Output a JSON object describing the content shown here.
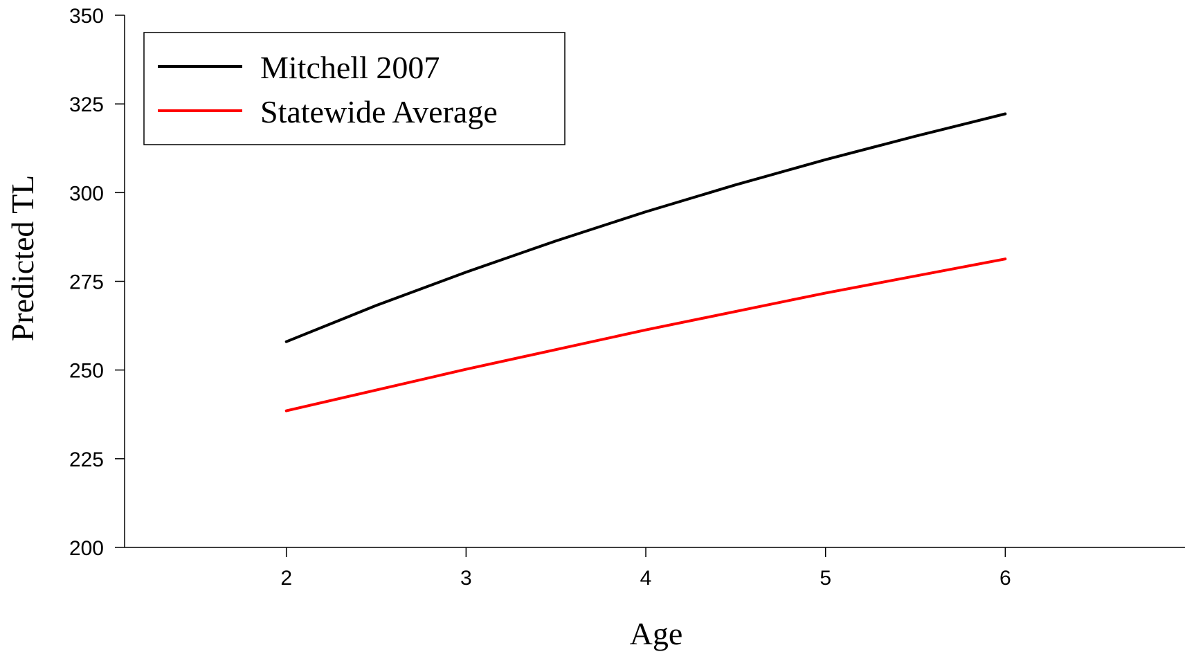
{
  "chart_data": {
    "type": "line",
    "xlabel": "Age",
    "ylabel": "Predicted TL",
    "xlim": [
      1.1,
      7
    ],
    "ylim": [
      200,
      350
    ],
    "xticks": [
      2,
      3,
      4,
      5,
      6
    ],
    "yticks": [
      200,
      225,
      250,
      275,
      300,
      325,
      350
    ],
    "grid": false,
    "legend_position": "top-left",
    "series": [
      {
        "name": "Mitchell 2007",
        "color": "#000000",
        "x": [
          2,
          2.5,
          3,
          3.5,
          4,
          4.5,
          5,
          5.5,
          6
        ],
        "y": [
          258,
          268.2,
          277.6,
          286.4,
          294.6,
          302.2,
          309.3,
          315.9,
          322.2
        ]
      },
      {
        "name": "Statewide Average",
        "color": "#ff0000",
        "x": [
          2,
          3,
          4,
          5,
          6
        ],
        "y": [
          238.5,
          250.2,
          261.3,
          271.7,
          281.3
        ]
      }
    ]
  }
}
